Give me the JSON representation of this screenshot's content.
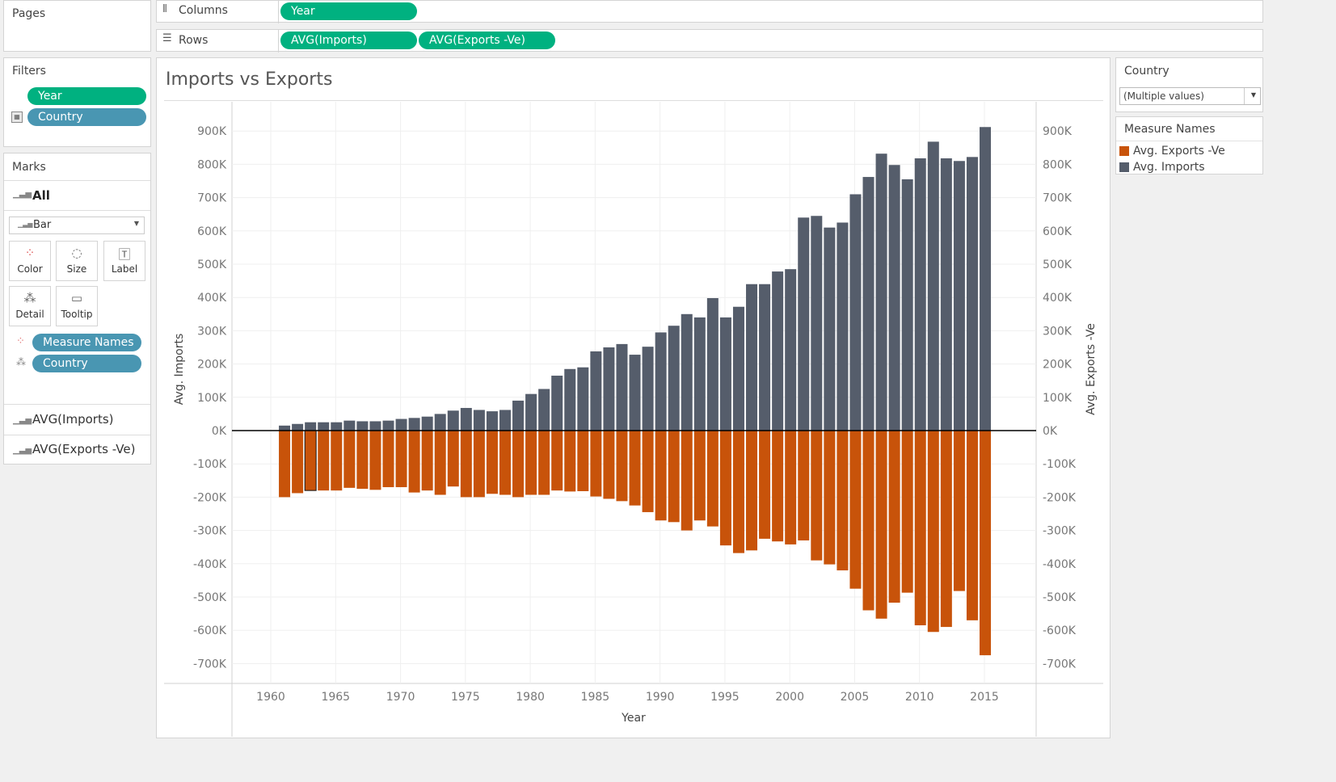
{
  "pages": {
    "title": "Pages"
  },
  "columns": {
    "label": "Columns",
    "pill": "Year"
  },
  "rows": {
    "label": "Rows",
    "pills": [
      "AVG(Imports)",
      "AVG(Exports -Ve)"
    ]
  },
  "filters": {
    "title": "Filters",
    "pills": [
      "Year",
      "Country"
    ]
  },
  "marks": {
    "title": "Marks",
    "all_label": "All",
    "mark_type": "Bar",
    "buttons": {
      "color": "Color",
      "size": "Size",
      "label": "Label",
      "detail": "Detail",
      "tooltip": "Tooltip"
    },
    "pills": [
      "Measure Names",
      "Country"
    ],
    "measures": [
      "AVG(Imports)",
      "AVG(Exports -Ve)"
    ]
  },
  "country_filter": {
    "title": "Country",
    "value": "(Multiple values)"
  },
  "legend": {
    "title": "Measure Names",
    "items": [
      {
        "label": "Avg. Exports -Ve",
        "color": "#c8530a"
      },
      {
        "label": "Avg. Imports",
        "color": "#555d6b"
      }
    ]
  },
  "colors": {
    "exports": "#c8530a",
    "imports": "#555d6b",
    "pill_green": "#00b180",
    "pill_blue": "#4996b2"
  },
  "chart_data": {
    "type": "bar",
    "title": "Imports vs Exports",
    "xlabel": "Year",
    "ylabel_left": "Avg. Imports",
    "ylabel_right": "Avg. Exports -Ve",
    "ylim": [
      -760000,
      980000
    ],
    "y_ticks": [
      900000,
      800000,
      700000,
      600000,
      500000,
      400000,
      300000,
      200000,
      100000,
      0,
      -100000,
      -200000,
      -300000,
      -400000,
      -500000,
      -600000,
      -700000
    ],
    "y_tick_labels": [
      "900K",
      "800K",
      "700K",
      "600K",
      "500K",
      "400K",
      "300K",
      "200K",
      "100K",
      "0K",
      "-100K",
      "-200K",
      "-300K",
      "-400K",
      "-500K",
      "-600K",
      "-700K"
    ],
    "x_ticks": [
      1960,
      1965,
      1970,
      1975,
      1980,
      1985,
      1990,
      1995,
      2000,
      2005,
      2010,
      2015
    ],
    "x_tick_labels": [
      "1960",
      "1965",
      "1970",
      "1975",
      "1980",
      "1985",
      "1990",
      "1995",
      "2000",
      "2005",
      "2010",
      "2015"
    ],
    "x": [
      1961,
      1962,
      1963,
      1964,
      1965,
      1966,
      1967,
      1968,
      1969,
      1970,
      1971,
      1972,
      1973,
      1974,
      1975,
      1976,
      1977,
      1978,
      1979,
      1980,
      1981,
      1982,
      1983,
      1984,
      1985,
      1986,
      1987,
      1988,
      1989,
      1990,
      1991,
      1992,
      1993,
      1994,
      1995,
      1996,
      1997,
      1998,
      1999,
      2000,
      2001,
      2002,
      2003,
      2004,
      2005,
      2006,
      2007,
      2008,
      2009,
      2010,
      2011,
      2012,
      2013,
      2014,
      2015
    ],
    "series": [
      {
        "name": "Avg. Imports",
        "values": [
          15000,
          20000,
          25000,
          25000,
          25000,
          30000,
          28000,
          28000,
          30000,
          35000,
          38000,
          42000,
          50000,
          60000,
          68000,
          62000,
          58000,
          62000,
          90000,
          110000,
          125000,
          165000,
          185000,
          190000,
          238000,
          250000,
          260000,
          228000,
          252000,
          295000,
          315000,
          350000,
          340000,
          398000,
          340000,
          372000,
          440000,
          440000,
          478000,
          485000,
          640000,
          645000,
          610000,
          625000,
          710000,
          762000,
          832000,
          798000,
          755000,
          818000,
          868000,
          818000,
          810000,
          822000,
          912000
        ]
      },
      {
        "name": "Avg. Exports -Ve",
        "values": [
          -200000,
          -188000,
          -180000,
          -180000,
          -180000,
          -172000,
          -175000,
          -178000,
          -170000,
          -170000,
          -186000,
          -180000,
          -193000,
          -168000,
          -200000,
          -200000,
          -190000,
          -193000,
          -200000,
          -193000,
          -193000,
          -180000,
          -183000,
          -182000,
          -198000,
          -205000,
          -212000,
          -225000,
          -245000,
          -270000,
          -275000,
          -300000,
          -270000,
          -288000,
          -345000,
          -368000,
          -360000,
          -325000,
          -333000,
          -342000,
          -330000,
          -390000,
          -402000,
          -420000,
          -475000,
          -540000,
          -565000,
          -517000,
          -487000,
          -585000,
          -605000,
          -590000,
          -482000,
          -570000,
          -675000
        ]
      }
    ],
    "highlighted_year": 1963,
    "grid": true
  }
}
